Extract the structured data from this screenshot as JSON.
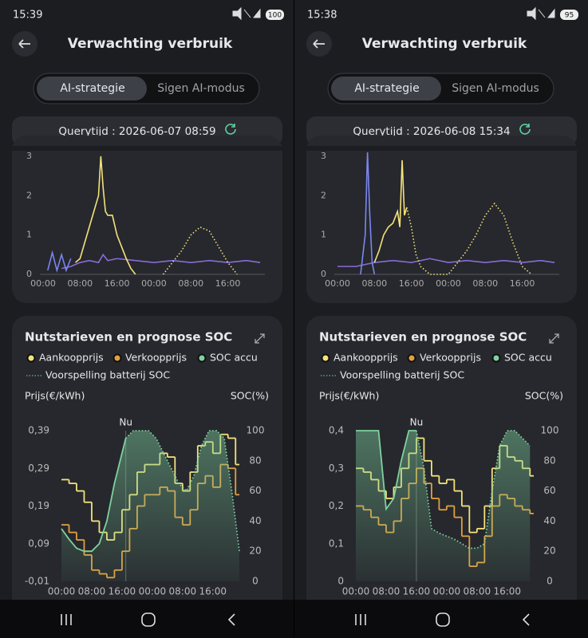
{
  "screens": [
    {
      "status_time": "15:39",
      "battery": "100",
      "title": "Verwachting verbruik",
      "tabs": [
        "AI-strategie",
        "Sigen AI-modus"
      ],
      "query": "Querytijd : 2026-06-07 08:59",
      "usage_chart": {
        "type": "line",
        "xlim": [
          0,
          47.5
        ],
        "ylim": [
          0,
          3.1
        ],
        "yticks": [
          0,
          1,
          2,
          3
        ],
        "xticks": [
          {
            "value": 0,
            "label": "00:00"
          },
          {
            "value": 8,
            "label": "08:00"
          },
          {
            "value": 16,
            "label": "16:00"
          },
          {
            "value": 24,
            "label": "00:00"
          },
          {
            "value": 32,
            "label": "08:00"
          },
          {
            "value": 40,
            "label": "16:00"
          }
        ],
        "series": [
          {
            "color": "#8a6bd6",
            "style": "solid",
            "x": [
              4,
              6,
              8,
              10,
              12,
              13,
              14,
              16,
              20,
              24,
              28,
              32,
              36,
              40,
              44,
              47
            ],
            "values": [
              0.15,
              0.2,
              0.3,
              0.35,
              0.3,
              0.5,
              0.35,
              0.4,
              0.35,
              0.3,
              0.35,
              0.3,
              0.35,
              0.3,
              0.35,
              0.3
            ]
          },
          {
            "color": "#7b86f0",
            "style": "solid",
            "x": [
              1,
              2,
              3,
              4,
              5,
              6
            ],
            "values": [
              0.1,
              0.55,
              0.1,
              0.5,
              0.1,
              0.4
            ]
          },
          {
            "color": "#f4e27a",
            "style": "solid",
            "x": [
              7,
              8,
              9,
              10,
              11,
              12,
              12.5,
              13,
              13.5,
              14,
              15,
              16,
              17,
              18,
              19,
              20
            ],
            "values": [
              0.3,
              0.4,
              0.8,
              1.2,
              1.6,
              2.0,
              3.0,
              2.2,
              1.6,
              1.5,
              1.5,
              1.0,
              0.7,
              0.4,
              0.15,
              0
            ]
          },
          {
            "color": "#f4e27a",
            "style": "dotted",
            "x": [
              26,
              28,
              30,
              32,
              34,
              36,
              38,
              40,
              42
            ],
            "values": [
              0,
              0.3,
              0.6,
              1.0,
              1.2,
              1.1,
              0.7,
              0.3,
              0
            ]
          }
        ]
      },
      "tariff_chart": {
        "type": "step",
        "title": "Nutstarieven en prognose SOC",
        "y_label": "Prijs(€/kWh)",
        "y2_label": "SOC(%)",
        "now": {
          "label": "Nu",
          "x": 17
        },
        "xlim": [
          0,
          47
        ],
        "ylim": [
          -0.01,
          0.39
        ],
        "yticks": [
          {
            "value": -0.01,
            "label": "-0,01"
          },
          {
            "value": 0.09,
            "label": "0,09"
          },
          {
            "value": 0.19,
            "label": "0,19"
          },
          {
            "value": 0.29,
            "label": "0,29"
          },
          {
            "value": 0.39,
            "label": "0,39"
          }
        ],
        "y2lim": [
          0,
          100
        ],
        "y2ticks": [
          0,
          20,
          40,
          60,
          80,
          100
        ],
        "xticks": [
          {
            "value": 0,
            "label": "00:00"
          },
          {
            "value": 8,
            "label": "08:00"
          },
          {
            "value": 16,
            "label": "16:00"
          },
          {
            "value": 24,
            "label": "00:00"
          },
          {
            "value": 32,
            "label": "08:00"
          },
          {
            "value": 40,
            "label": "16:00"
          }
        ],
        "series": [
          {
            "name": "Aankoopprijs",
            "color": "#f4e27a",
            "step": true,
            "x": [
              0,
              2,
              4,
              6,
              8,
              10,
              12,
              14,
              16,
              18,
              20,
              22,
              24,
              26,
              28,
              30,
              32,
              34,
              36,
              38,
              40,
              42,
              44,
              46
            ],
            "values": [
              0.26,
              0.25,
              0.23,
              0.2,
              0.15,
              0.12,
              0.1,
              0.12,
              0.18,
              0.22,
              0.28,
              0.3,
              0.3,
              0.33,
              0.32,
              0.25,
              0.23,
              0.28,
              0.35,
              0.36,
              0.33,
              0.38,
              0.37,
              0.3
            ]
          },
          {
            "name": "Verkoopprijs",
            "color": "#e0a040",
            "step": true,
            "x": [
              0,
              2,
              4,
              6,
              8,
              10,
              12,
              14,
              16,
              18,
              20,
              22,
              24,
              26,
              28,
              30,
              32,
              34,
              36,
              38,
              40,
              42,
              44,
              46
            ],
            "values": [
              0.14,
              0.12,
              0.1,
              0.06,
              0.02,
              0.01,
              0.0,
              0.02,
              0.07,
              0.13,
              0.19,
              0.22,
              0.22,
              0.24,
              0.23,
              0.16,
              0.14,
              0.18,
              0.25,
              0.27,
              0.24,
              0.3,
              0.29,
              0.22
            ]
          },
          {
            "name": "SOC accu",
            "color": "#7fd1a0",
            "axis": "y2",
            "area": true,
            "x": [
              0,
              2,
              4,
              6,
              8,
              10,
              12,
              14,
              16,
              17
            ],
            "values": [
              35,
              28,
              22,
              20,
              20,
              25,
              40,
              65,
              85,
              95
            ]
          },
          {
            "name": "Voorspelling batterij SOC",
            "color": "#7fd1a0",
            "axis": "y2",
            "style": "dotted",
            "area": true,
            "x": [
              17,
              19,
              21,
              23,
              25,
              27,
              29,
              31,
              33,
              35,
              37,
              39,
              41,
              43,
              45,
              47
            ],
            "values": [
              95,
              100,
              100,
              100,
              95,
              85,
              75,
              65,
              60,
              70,
              90,
              100,
              100,
              95,
              60,
              20
            ]
          }
        ]
      }
    },
    {
      "status_time": "15:38",
      "battery": "95",
      "title": "Verwachting verbruik",
      "tabs": [
        "AI-strategie",
        "Sigen AI-modus"
      ],
      "query": "Querytijd : 2026-06-08 15:34",
      "usage_chart": {
        "type": "line",
        "xlim": [
          0,
          47.5
        ],
        "ylim": [
          0,
          3.1
        ],
        "yticks": [
          0,
          1,
          2,
          3
        ],
        "xticks": [
          {
            "value": 0,
            "label": "00:00"
          },
          {
            "value": 8,
            "label": "08:00"
          },
          {
            "value": 16,
            "label": "16:00"
          },
          {
            "value": 24,
            "label": "00:00"
          },
          {
            "value": 32,
            "label": "08:00"
          },
          {
            "value": 40,
            "label": "16:00"
          }
        ],
        "series": [
          {
            "color": "#8a6bd6",
            "style": "solid",
            "x": [
              0,
              4,
              8,
              12,
              16,
              20,
              24,
              28,
              32,
              36,
              40,
              44,
              47
            ],
            "values": [
              0.2,
              0.2,
              0.3,
              0.35,
              0.3,
              0.4,
              0.3,
              0.35,
              0.3,
              0.35,
              0.3,
              0.35,
              0.3
            ]
          },
          {
            "color": "#7b86f0",
            "style": "solid",
            "x": [
              5,
              6,
              6.5,
              7,
              7.5,
              8
            ],
            "values": [
              0,
              1.0,
              3.1,
              1.5,
              0.3,
              0
            ]
          },
          {
            "color": "#f4e27a",
            "style": "solid",
            "x": [
              8,
              9,
              10,
              11,
              12,
              13,
              13.5,
              14,
              14.5,
              15
            ],
            "values": [
              0.3,
              0.6,
              1.0,
              1.2,
              1.3,
              1.6,
              1.2,
              2.9,
              1.5,
              1.7
            ]
          },
          {
            "color": "#f4e27a",
            "style": "dotted",
            "x": [
              15,
              16,
              17,
              18,
              20,
              22,
              24,
              26,
              28,
              30,
              32,
              34,
              36,
              38,
              40,
              42
            ],
            "values": [
              1.7,
              1.2,
              0.5,
              0.2,
              0,
              0,
              0,
              0.3,
              0.6,
              1.0,
              1.5,
              1.8,
              1.5,
              0.8,
              0.2,
              0
            ]
          }
        ]
      },
      "tariff_chart": {
        "type": "step",
        "title": "Nutstarieven en prognose SOC",
        "y_label": "Prijs(€/kWh)",
        "y2_label": "SOC(%)",
        "now": {
          "label": "Nu",
          "x": 16
        },
        "xlim": [
          0,
          47
        ],
        "ylim": [
          0,
          0.4
        ],
        "yticks": [
          0,
          {
            "value": 0.1,
            "label": "0,1"
          },
          {
            "value": 0.2,
            "label": "0,2"
          },
          {
            "value": 0.3,
            "label": "0,3"
          },
          {
            "value": 0.4,
            "label": "0,4"
          }
        ],
        "y2lim": [
          0,
          100
        ],
        "y2ticks": [
          0,
          20,
          40,
          60,
          80,
          100
        ],
        "xticks": [
          {
            "value": 0,
            "label": "00:00"
          },
          {
            "value": 8,
            "label": "08:00"
          },
          {
            "value": 16,
            "label": "16:00"
          },
          {
            "value": 24,
            "label": "00:00"
          },
          {
            "value": 32,
            "label": "08:00"
          },
          {
            "value": 40,
            "label": "16:00"
          }
        ],
        "series": [
          {
            "name": "Aankoopprijs",
            "color": "#f4e27a",
            "step": true,
            "x": [
              0,
              2,
              4,
              6,
              8,
              10,
              12,
              14,
              16,
              18,
              20,
              22,
              24,
              26,
              28,
              30,
              32,
              34,
              36,
              38,
              40,
              42,
              44,
              46
            ],
            "values": [
              0.3,
              0.29,
              0.27,
              0.24,
              0.22,
              0.25,
              0.3,
              0.34,
              0.38,
              0.32,
              0.28,
              0.26,
              0.27,
              0.24,
              0.2,
              0.13,
              0.14,
              0.2,
              0.3,
              0.36,
              0.33,
              0.32,
              0.3,
              0.28
            ]
          },
          {
            "name": "Verkoopprijs",
            "color": "#e0a040",
            "step": true,
            "x": [
              0,
              2,
              4,
              6,
              8,
              10,
              12,
              14,
              16,
              18,
              20,
              22,
              24,
              26,
              28,
              30,
              32,
              34,
              36,
              38,
              40,
              42,
              44,
              46
            ],
            "values": [
              0.2,
              0.19,
              0.17,
              0.15,
              0.13,
              0.16,
              0.22,
              0.26,
              0.3,
              0.26,
              0.22,
              0.19,
              0.2,
              0.17,
              0.12,
              0.04,
              0.05,
              0.12,
              0.2,
              0.23,
              0.22,
              0.2,
              0.19,
              0.18
            ]
          },
          {
            "name": "SOC accu",
            "color": "#7fd1a0",
            "axis": "y2",
            "area": true,
            "x": [
              0,
              2,
              4,
              6,
              8,
              10,
              12,
              14,
              16
            ],
            "values": [
              100,
              100,
              100,
              100,
              48,
              55,
              80,
              100,
              100
            ]
          },
          {
            "name": "Voorspelling batterij SOC",
            "color": "#7fd1a0",
            "axis": "y2",
            "style": "dotted",
            "area": true,
            "x": [
              16,
              18,
              20,
              22,
              24,
              26,
              28,
              30,
              32,
              34,
              36,
              38,
              40,
              42,
              44,
              46
            ],
            "values": [
              100,
              75,
              35,
              32,
              30,
              28,
              25,
              22,
              22,
              25,
              60,
              90,
              100,
              100,
              95,
              90
            ]
          }
        ]
      }
    }
  ]
}
